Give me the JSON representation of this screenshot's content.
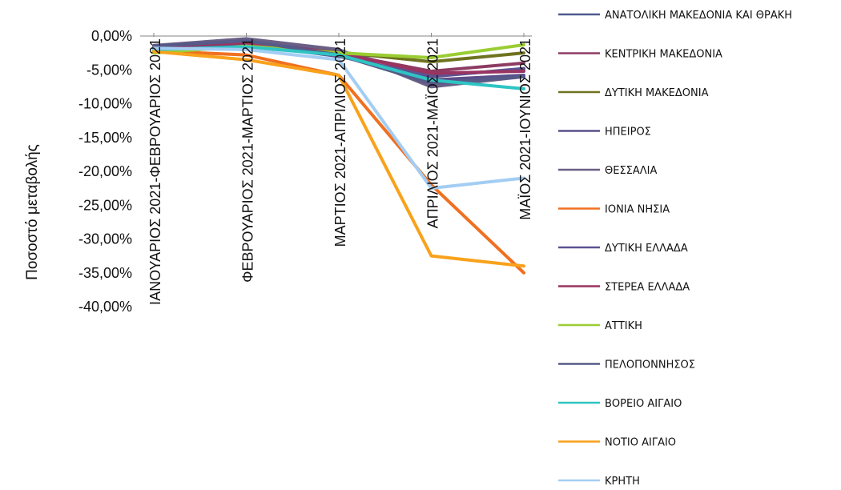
{
  "chart_data": {
    "type": "line",
    "title": "",
    "xlabel": "",
    "ylabel": "Ποσοστό μεταβολής",
    "ylim": [
      -40,
      0
    ],
    "yticks": [
      0,
      -5,
      -10,
      -15,
      -20,
      -25,
      -30,
      -35,
      -40
    ],
    "ytick_labels": [
      "0,00%",
      "-5,00%",
      "-10,00%",
      "-15,00%",
      "-20,00%",
      "-25,00%",
      "-30,00%",
      "-35,00%",
      "-40,00%"
    ],
    "grid": false,
    "legend_position": "right",
    "categories": [
      "ΙΑΝΟΥΑΡΙΟΣ 2021-ΦΕΒΡΟΥΑΡΙΟΣ 2021",
      "ΦΕΒΡΟΥΑΡΙΟΣ 2021-ΜΑΡΤΙΟΣ 2021",
      "ΜΑΡΤΙΟΣ 2021-ΑΠΡΙΛΙΟΣ 2021",
      "ΑΠΡΙΛΙΟΣ 2021-ΜΑΪΟΣ 2021",
      "ΜΑΪΟΣ 2021-ΙΟΥΝΙΟΣ 2021"
    ],
    "series": [
      {
        "name": "ΑΝΑΤΟΛΙΚΗ ΜΑΚΕΔΟΝΙΑ ΚΑΙ ΘΡΑΚΗ",
        "color": "#4f5a8f",
        "values": [
          -1.5,
          -0.8,
          -2.2,
          -5.8,
          -5.0
        ]
      },
      {
        "name": "ΚΕΝΤΡΙΚΗ ΜΑΚΕΔΟΝΙΑ",
        "color": "#8e3b63",
        "values": [
          -1.7,
          -1.0,
          -2.6,
          -5.2,
          -4.0
        ]
      },
      {
        "name": "ΔΥΤΙΚΗ ΜΑΚΕΔΟΝΙΑ",
        "color": "#6f7320",
        "values": [
          -2.0,
          -1.3,
          -2.4,
          -3.8,
          -2.5
        ]
      },
      {
        "name": "ΗΠΕΙΡΟΣ",
        "color": "#5a4f8a",
        "values": [
          -1.6,
          -0.9,
          -2.7,
          -6.5,
          -5.8
        ]
      },
      {
        "name": "ΘΕΣΣΑΛΙΑ",
        "color": "#6a5f85",
        "values": [
          -1.4,
          -0.4,
          -2.0,
          -7.5,
          -6.0
        ]
      },
      {
        "name": "ΙΟΝΙΑ ΝΗΣΙΑ",
        "color": "#f07021",
        "values": [
          -2.2,
          -2.8,
          -5.8,
          -22.0,
          -35.0
        ]
      },
      {
        "name": "ΔΥΤΙΚΗ ΕΛΛΑΔΑ",
        "color": "#5e5292",
        "values": [
          -1.8,
          -1.2,
          -3.0,
          -6.0,
          -4.8
        ]
      },
      {
        "name": "ΣΤΕΡΕΑ ΕΛΛΑΔΑ",
        "color": "#9a3460",
        "values": [
          -1.6,
          -1.0,
          -2.5,
          -5.5,
          -5.2
        ]
      },
      {
        "name": "ΑΤΤΙΚΗ",
        "color": "#9acd32",
        "values": [
          -2.5,
          -1.5,
          -2.5,
          -3.2,
          -1.3
        ]
      },
      {
        "name": "ΠΕΛΟΠΟΝΝΗΣΟΣ",
        "color": "#565a88",
        "values": [
          -1.5,
          -0.7,
          -2.8,
          -7.0,
          -6.0
        ]
      },
      {
        "name": "ΒΟΡΕΙΟ ΑΙΓΑΙΟ",
        "color": "#2ec4c4",
        "values": [
          -2.0,
          -1.6,
          -2.8,
          -6.5,
          -7.8
        ]
      },
      {
        "name": "ΝΟΤΙΟ ΑΙΓΑΙΟ",
        "color": "#f8a21c",
        "values": [
          -2.3,
          -3.5,
          -5.8,
          -32.5,
          -34.0
        ]
      },
      {
        "name": "ΚΡΗΤΗ",
        "color": "#a3cdf3",
        "values": [
          -1.8,
          -2.0,
          -3.5,
          -22.5,
          -21.0
        ]
      }
    ]
  }
}
